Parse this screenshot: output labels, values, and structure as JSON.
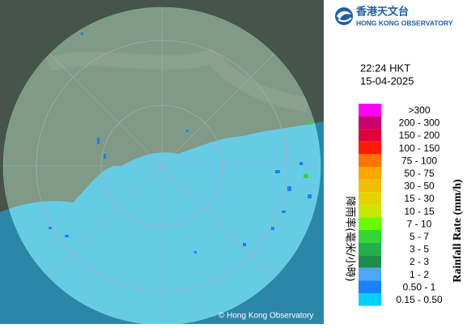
{
  "header": {
    "logo_chinese": "香港天文台",
    "logo_english": "HONG KONG OBSERVATORY"
  },
  "time": "22:24 HKT",
  "date": "15-04-2025",
  "legend": {
    "title": "Rainfall Rate (mm/h)",
    "title_chinese": "降雨率(毫米/小時)",
    "items": [
      {
        "label": ">300",
        "color": "#ff00ff"
      },
      {
        "label": "200 - 300",
        "color": "#c8006e"
      },
      {
        "label": "150 - 200",
        "color": "#e0003c"
      },
      {
        "label": "100 - 150",
        "color": "#ff1a00"
      },
      {
        "label": "75 - 100",
        "color": "#ff7300"
      },
      {
        "label": "50 - 75",
        "color": "#ffa500"
      },
      {
        "label": "30 - 50",
        "color": "#f0c000"
      },
      {
        "label": "15 - 30",
        "color": "#e6d200"
      },
      {
        "label": "10 - 15",
        "color": "#c8e600"
      },
      {
        "label": "7 - 10",
        "color": "#66ff00"
      },
      {
        "label": "5 - 7",
        "color": "#33d633"
      },
      {
        "label": "3 - 5",
        "color": "#22b04a"
      },
      {
        "label": "2 - 3",
        "color": "#1e8c4a"
      },
      {
        "label": "1 - 2",
        "color": "#4da6ff"
      },
      {
        "label": "0.50 - 1",
        "color": "#1a80ff"
      },
      {
        "label": "0.15 - 0.50",
        "color": "#00d0ff"
      }
    ]
  },
  "copyright": "© Hong Kong Observatory"
}
